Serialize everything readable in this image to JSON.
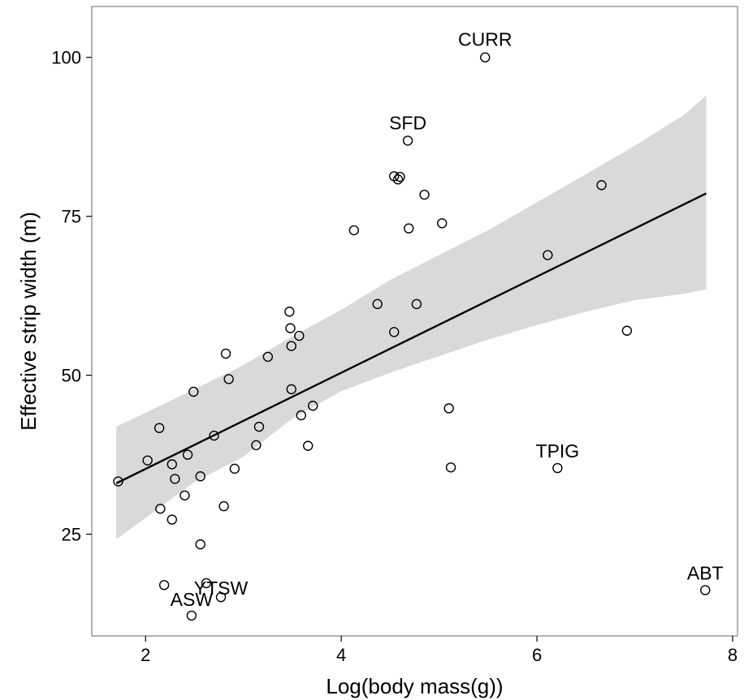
{
  "chart_data": {
    "type": "scatter",
    "title": "",
    "xlabel": "Log(body mass(g))",
    "ylabel": "Effective strip width (m)",
    "xlim": [
      1.45,
      8.05
    ],
    "ylim": [
      9,
      108
    ],
    "x_ticks": [
      2,
      4,
      6,
      8
    ],
    "y_ticks": [
      25,
      50,
      75,
      100
    ],
    "grid": false,
    "points": [
      {
        "x": 1.72,
        "y": 33.3
      },
      {
        "x": 2.02,
        "y": 36.6
      },
      {
        "x": 2.14,
        "y": 41.7
      },
      {
        "x": 2.15,
        "y": 29.0
      },
      {
        "x": 2.27,
        "y": 36.0
      },
      {
        "x": 2.3,
        "y": 33.7
      },
      {
        "x": 2.27,
        "y": 27.3
      },
      {
        "x": 2.4,
        "y": 31.1
      },
      {
        "x": 2.43,
        "y": 37.5
      },
      {
        "x": 2.49,
        "y": 47.4
      },
      {
        "x": 2.56,
        "y": 34.1
      },
      {
        "x": 2.56,
        "y": 23.4
      },
      {
        "x": 2.7,
        "y": 40.5
      },
      {
        "x": 2.8,
        "y": 29.4
      },
      {
        "x": 2.82,
        "y": 53.4
      },
      {
        "x": 2.85,
        "y": 49.4
      },
      {
        "x": 2.91,
        "y": 35.3
      },
      {
        "x": 3.13,
        "y": 39.0
      },
      {
        "x": 3.16,
        "y": 41.9
      },
      {
        "x": 3.25,
        "y": 52.9
      },
      {
        "x": 3.47,
        "y": 60.0
      },
      {
        "x": 3.48,
        "y": 57.4
      },
      {
        "x": 3.49,
        "y": 54.6
      },
      {
        "x": 3.49,
        "y": 47.8
      },
      {
        "x": 3.57,
        "y": 56.2
      },
      {
        "x": 3.59,
        "y": 43.7
      },
      {
        "x": 3.66,
        "y": 38.9
      },
      {
        "x": 3.71,
        "y": 45.2
      },
      {
        "x": 4.13,
        "y": 72.8
      },
      {
        "x": 4.37,
        "y": 61.2
      },
      {
        "x": 4.54,
        "y": 56.8
      },
      {
        "x": 4.54,
        "y": 81.3
      },
      {
        "x": 4.58,
        "y": 80.8
      },
      {
        "x": 4.6,
        "y": 81.2
      },
      {
        "x": 4.69,
        "y": 73.1
      },
      {
        "x": 4.77,
        "y": 61.2
      },
      {
        "x": 4.85,
        "y": 78.4
      },
      {
        "x": 5.03,
        "y": 73.9
      },
      {
        "x": 5.1,
        "y": 44.8
      },
      {
        "x": 5.12,
        "y": 35.5
      },
      {
        "x": 6.11,
        "y": 68.9
      },
      {
        "x": 6.66,
        "y": 79.9
      },
      {
        "x": 6.92,
        "y": 57.0
      },
      {
        "x": 4.68,
        "y": 86.9,
        "label": "SFD"
      },
      {
        "x": 5.47,
        "y": 100.0,
        "label": "CURR"
      },
      {
        "x": 6.21,
        "y": 35.4,
        "label": "TPIG"
      },
      {
        "x": 7.72,
        "y": 16.2,
        "label": "ABT"
      },
      {
        "x": 2.77,
        "y": 15.1,
        "label": "YTSW"
      },
      {
        "x": 2.47,
        "y": 12.2,
        "label": "ASW"
      },
      {
        "x": 2.19,
        "y": 17.0
      },
      {
        "x": 2.62,
        "y": 17.3
      }
    ],
    "fit_line": {
      "x": [
        1.7,
        7.73
      ],
      "y": [
        33.0,
        78.6
      ]
    },
    "confidence_band": {
      "x": [
        1.7,
        2.5,
        3.0,
        3.5,
        4.0,
        4.5,
        5.0,
        5.5,
        6.0,
        6.5,
        7.0,
        7.5,
        7.73
      ],
      "upper": [
        41.9,
        47.8,
        51.6,
        56.1,
        60.3,
        65.0,
        68.9,
        72.8,
        77.2,
        81.6,
        86.1,
        90.9,
        94.0
      ],
      "lower": [
        24.2,
        33.2,
        37.2,
        43.2,
        47.5,
        50.4,
        53.0,
        55.6,
        57.9,
        60.0,
        61.8,
        62.8,
        63.5
      ]
    },
    "colors": {
      "band": "#d9d9d9",
      "line": "#000000",
      "points": "#000000"
    }
  }
}
